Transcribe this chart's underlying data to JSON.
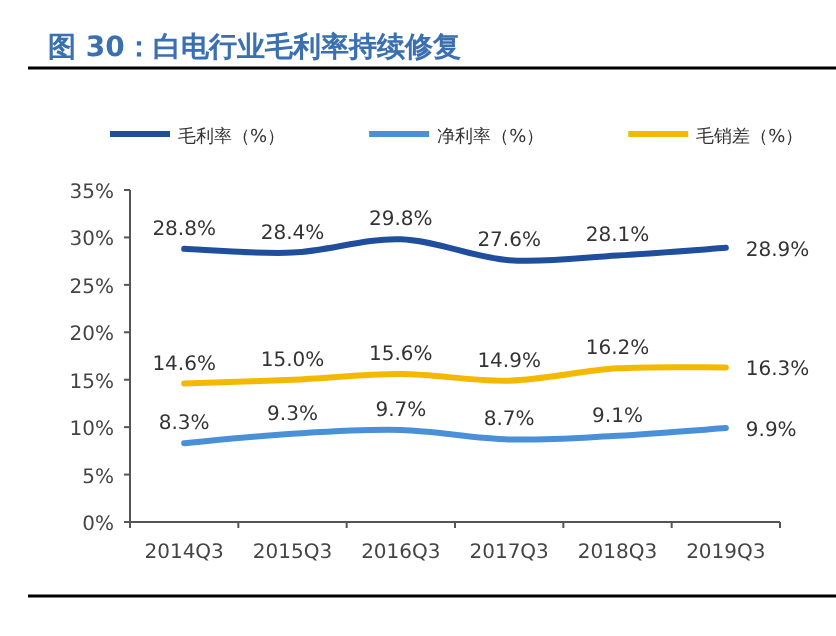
{
  "chart_data": {
    "type": "line",
    "title": "图 30：白电行业毛利率持续修复",
    "categories": [
      "2014Q3",
      "2015Q3",
      "2016Q3",
      "2017Q3",
      "2018Q3",
      "2019Q3"
    ],
    "series": [
      {
        "name": "毛利率（%）",
        "color": "#1f4e9c",
        "values": [
          28.8,
          28.4,
          29.8,
          27.6,
          28.1,
          28.9
        ],
        "value_labels": [
          "28.8%",
          "28.4%",
          "29.8%",
          "27.6%",
          "28.1%",
          "28.9%"
        ]
      },
      {
        "name": "净利率（%）",
        "color": "#4a90d9",
        "values": [
          8.3,
          9.3,
          9.7,
          8.7,
          9.1,
          9.9
        ],
        "value_labels": [
          "8.3%",
          "9.3%",
          "9.7%",
          "8.7%",
          "9.1%",
          "9.9%"
        ]
      },
      {
        "name": "毛销差（%）",
        "color": "#f5b800",
        "values": [
          14.6,
          15.0,
          15.6,
          14.9,
          16.2,
          16.3
        ],
        "value_labels": [
          "14.6%",
          "15.0%",
          "15.6%",
          "14.9%",
          "16.2%",
          "16.3%"
        ]
      }
    ],
    "ylim": [
      0,
      35
    ],
    "yticks": [
      {
        "value": 0,
        "label": "0%"
      },
      {
        "value": 5,
        "label": "5%"
      },
      {
        "value": 10,
        "label": "10%"
      },
      {
        "value": 15,
        "label": "15%"
      },
      {
        "value": 20,
        "label": "20%"
      },
      {
        "value": 25,
        "label": "25%"
      },
      {
        "value": 30,
        "label": "30%"
      },
      {
        "value": 35,
        "label": "35%"
      }
    ],
    "legend": "top",
    "grid": false,
    "marker": "none",
    "line_style": "solid"
  }
}
